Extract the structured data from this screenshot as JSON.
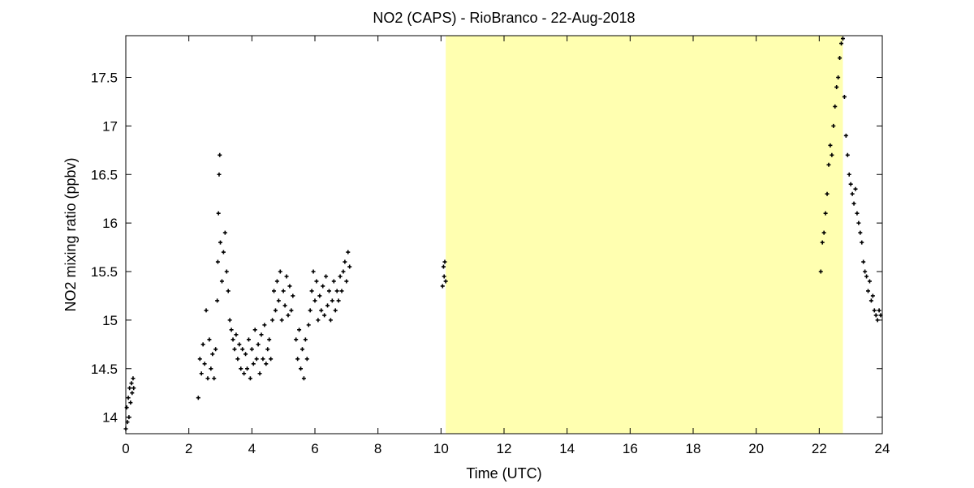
{
  "chart_data": {
    "type": "scatter",
    "title": "NO2 (CAPS) - RioBranco - 22-Aug-2018",
    "xlabel": "Time (UTC)",
    "ylabel": "NO2 mixing ratio (ppbv)",
    "xlim": [
      0,
      24
    ],
    "ylim": [
      13.83,
      17.93
    ],
    "xticks": [
      0,
      2,
      4,
      6,
      8,
      10,
      12,
      14,
      16,
      18,
      20,
      22,
      24
    ],
    "yticks": [
      14,
      14.5,
      15,
      15.5,
      16,
      16.5,
      17,
      17.5
    ],
    "grid": false,
    "marker_color": "#000000",
    "highlight_band": {
      "x_start": 10.15,
      "x_end": 22.75,
      "color": "#ffffb0"
    },
    "series": [
      {
        "points": [
          [
            0.0,
            13.88
          ],
          [
            0.03,
            14.1
          ],
          [
            0.05,
            13.95
          ],
          [
            0.08,
            14.2
          ],
          [
            0.1,
            14.0
          ],
          [
            0.12,
            14.3
          ],
          [
            0.15,
            14.15
          ],
          [
            0.18,
            14.35
          ],
          [
            0.2,
            14.25
          ],
          [
            0.23,
            14.4
          ],
          [
            0.25,
            14.3
          ],
          [
            2.3,
            14.2
          ],
          [
            2.35,
            14.6
          ],
          [
            2.4,
            14.45
          ],
          [
            2.45,
            14.75
          ],
          [
            2.5,
            14.55
          ],
          [
            2.55,
            15.1
          ],
          [
            2.6,
            14.4
          ],
          [
            2.65,
            14.8
          ],
          [
            2.7,
            14.5
          ],
          [
            2.75,
            14.65
          ],
          [
            2.8,
            14.4
          ],
          [
            2.85,
            14.7
          ],
          [
            2.9,
            15.2
          ],
          [
            2.92,
            15.6
          ],
          [
            2.94,
            16.1
          ],
          [
            2.96,
            16.5
          ],
          [
            2.98,
            16.7
          ],
          [
            3.0,
            15.8
          ],
          [
            3.05,
            15.4
          ],
          [
            3.1,
            15.7
          ],
          [
            3.15,
            15.9
          ],
          [
            3.2,
            15.5
          ],
          [
            3.25,
            15.3
          ],
          [
            3.3,
            15.0
          ],
          [
            3.35,
            14.9
          ],
          [
            3.4,
            14.8
          ],
          [
            3.45,
            14.7
          ],
          [
            3.5,
            14.85
          ],
          [
            3.55,
            14.6
          ],
          [
            3.6,
            14.75
          ],
          [
            3.65,
            14.5
          ],
          [
            3.7,
            14.7
          ],
          [
            3.75,
            14.45
          ],
          [
            3.8,
            14.65
          ],
          [
            3.85,
            14.5
          ],
          [
            3.9,
            14.8
          ],
          [
            3.95,
            14.4
          ],
          [
            4.0,
            14.7
          ],
          [
            4.05,
            14.55
          ],
          [
            4.1,
            14.9
          ],
          [
            4.15,
            14.6
          ],
          [
            4.2,
            14.75
          ],
          [
            4.25,
            14.45
          ],
          [
            4.3,
            14.85
          ],
          [
            4.35,
            14.6
          ],
          [
            4.4,
            14.95
          ],
          [
            4.45,
            14.55
          ],
          [
            4.5,
            14.7
          ],
          [
            4.55,
            14.8
          ],
          [
            4.6,
            14.6
          ],
          [
            4.65,
            15.0
          ],
          [
            4.7,
            15.3
          ],
          [
            4.75,
            15.1
          ],
          [
            4.8,
            15.4
          ],
          [
            4.85,
            15.2
          ],
          [
            4.9,
            15.5
          ],
          [
            4.95,
            15.0
          ],
          [
            5.0,
            15.3
          ],
          [
            5.05,
            15.15
          ],
          [
            5.1,
            15.45
          ],
          [
            5.15,
            15.05
          ],
          [
            5.2,
            15.35
          ],
          [
            5.25,
            15.1
          ],
          [
            5.3,
            15.25
          ],
          [
            5.4,
            14.8
          ],
          [
            5.45,
            14.6
          ],
          [
            5.5,
            14.9
          ],
          [
            5.55,
            14.5
          ],
          [
            5.6,
            14.7
          ],
          [
            5.65,
            14.4
          ],
          [
            5.7,
            14.8
          ],
          [
            5.75,
            14.6
          ],
          [
            5.8,
            14.95
          ],
          [
            5.85,
            15.1
          ],
          [
            5.9,
            15.3
          ],
          [
            5.95,
            15.5
          ],
          [
            6.0,
            15.2
          ],
          [
            6.05,
            15.4
          ],
          [
            6.1,
            15.0
          ],
          [
            6.15,
            15.25
          ],
          [
            6.2,
            15.1
          ],
          [
            6.25,
            15.35
          ],
          [
            6.3,
            15.05
          ],
          [
            6.35,
            15.45
          ],
          [
            6.4,
            15.15
          ],
          [
            6.45,
            15.3
          ],
          [
            6.5,
            15.0
          ],
          [
            6.55,
            15.2
          ],
          [
            6.6,
            15.4
          ],
          [
            6.65,
            15.1
          ],
          [
            6.7,
            15.3
          ],
          [
            6.75,
            15.2
          ],
          [
            6.8,
            15.45
          ],
          [
            6.85,
            15.3
          ],
          [
            6.9,
            15.5
          ],
          [
            6.95,
            15.6
          ],
          [
            7.0,
            15.4
          ],
          [
            7.05,
            15.7
          ],
          [
            7.1,
            15.55
          ],
          [
            10.05,
            15.35
          ],
          [
            10.08,
            15.55
          ],
          [
            10.1,
            15.45
          ],
          [
            10.12,
            15.6
          ],
          [
            10.15,
            15.4
          ],
          [
            22.05,
            15.5
          ],
          [
            22.1,
            15.8
          ],
          [
            22.15,
            15.9
          ],
          [
            22.2,
            16.1
          ],
          [
            22.25,
            16.3
          ],
          [
            22.3,
            16.6
          ],
          [
            22.35,
            16.8
          ],
          [
            22.4,
            16.7
          ],
          [
            22.45,
            17.0
          ],
          [
            22.5,
            17.2
          ],
          [
            22.55,
            17.4
          ],
          [
            22.6,
            17.5
          ],
          [
            22.65,
            17.7
          ],
          [
            22.7,
            17.85
          ],
          [
            22.75,
            17.9
          ],
          [
            22.8,
            17.3
          ],
          [
            22.85,
            16.9
          ],
          [
            22.9,
            16.7
          ],
          [
            22.95,
            16.5
          ],
          [
            23.0,
            16.4
          ],
          [
            23.05,
            16.3
          ],
          [
            23.1,
            16.2
          ],
          [
            23.15,
            16.35
          ],
          [
            23.2,
            16.1
          ],
          [
            23.25,
            16.0
          ],
          [
            23.3,
            15.9
          ],
          [
            23.35,
            15.8
          ],
          [
            23.4,
            15.6
          ],
          [
            23.45,
            15.5
          ],
          [
            23.5,
            15.45
          ],
          [
            23.55,
            15.3
          ],
          [
            23.6,
            15.4
          ],
          [
            23.65,
            15.2
          ],
          [
            23.7,
            15.25
          ],
          [
            23.75,
            15.1
          ],
          [
            23.8,
            15.05
          ],
          [
            23.85,
            15.0
          ],
          [
            23.9,
            15.1
          ],
          [
            23.95,
            15.05
          ]
        ]
      }
    ]
  }
}
